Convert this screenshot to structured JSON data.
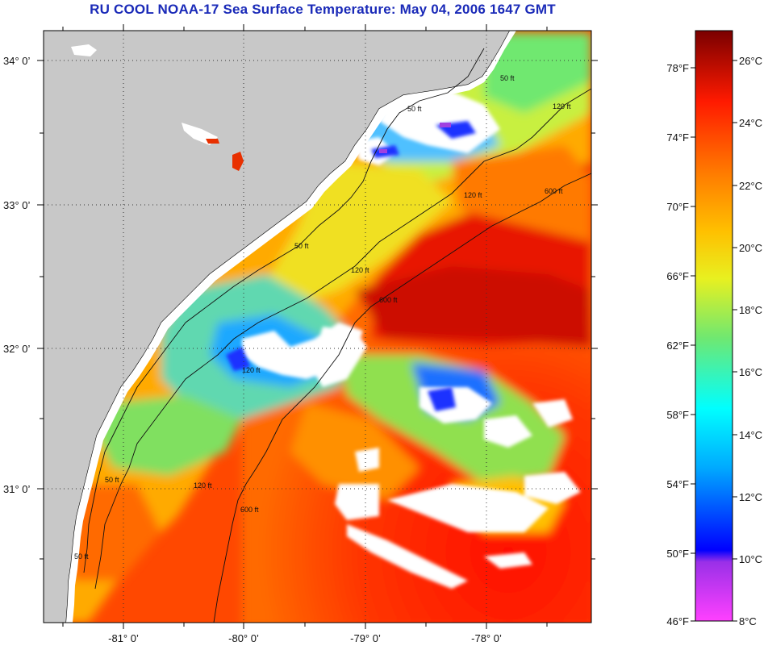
{
  "title": "RU COOL  NOAA-17  Sea Surface Temperature:  May 04, 2006 1647 GMT",
  "axes": {
    "latitude_labels": [
      "34° 0’",
      "33° 0’",
      "32° 0’",
      "31° 0’"
    ],
    "longitude_labels": [
      "-81° 0’",
      "-80° 0’",
      "-79° 0’",
      "-78° 0’"
    ]
  },
  "contour_labels": [
    "50 ft",
    "120 ft",
    "600 ft"
  ],
  "colorbar": {
    "fahrenheit_labels": [
      "78°F",
      "74°F",
      "70°F",
      "66°F",
      "62°F",
      "58°F",
      "54°F",
      "50°F",
      "46°F"
    ],
    "celsius_labels": [
      "26°C",
      "24°C",
      "22°C",
      "20°C",
      "18°C",
      "16°C",
      "14°C",
      "12°C",
      "10°C",
      "8°C"
    ]
  },
  "colors": {
    "land": "#c8c8c8",
    "cloud_mask": "#ffffff",
    "title": "#1a2ab8"
  }
}
